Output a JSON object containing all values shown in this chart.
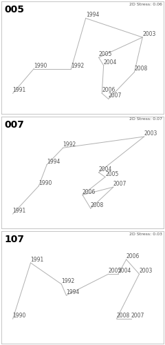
{
  "panels": [
    {
      "label": "005",
      "stress": "2D Stress: 0.06",
      "points": {
        "1991": [
          0.07,
          0.18
        ],
        "1990": [
          0.2,
          0.4
        ],
        "1992": [
          0.43,
          0.4
        ],
        "1994": [
          0.52,
          0.85
        ],
        "2003": [
          0.87,
          0.68
        ],
        "2005": [
          0.6,
          0.5
        ],
        "2004": [
          0.63,
          0.43
        ],
        "2008": [
          0.82,
          0.37
        ],
        "2006": [
          0.62,
          0.18
        ],
        "2007": [
          0.66,
          0.13
        ]
      },
      "connections": [
        [
          "1991",
          "1990"
        ],
        [
          "1990",
          "1992"
        ],
        [
          "1992",
          "1994"
        ],
        [
          "1994",
          "2003"
        ],
        [
          "2003",
          "2005"
        ],
        [
          "2005",
          "2004"
        ],
        [
          "2004",
          "2006"
        ],
        [
          "2006",
          "2007"
        ],
        [
          "2007",
          "2008"
        ],
        [
          "2008",
          "2003"
        ]
      ]
    },
    {
      "label": "007",
      "stress": "2D Stress: 0.07",
      "points": {
        "1991": [
          0.07,
          0.13
        ],
        "1990": [
          0.23,
          0.38
        ],
        "1992": [
          0.38,
          0.72
        ],
        "1994": [
          0.28,
          0.57
        ],
        "2003": [
          0.88,
          0.82
        ],
        "2004": [
          0.6,
          0.5
        ],
        "2005": [
          0.64,
          0.46
        ],
        "2006": [
          0.5,
          0.3
        ],
        "2007": [
          0.69,
          0.37
        ],
        "2008": [
          0.55,
          0.18
        ]
      },
      "connections": [
        [
          "1991",
          "1990"
        ],
        [
          "1990",
          "1994"
        ],
        [
          "1994",
          "1992"
        ],
        [
          "1992",
          "2003"
        ],
        [
          "2003",
          "2004"
        ],
        [
          "2004",
          "2005"
        ],
        [
          "2005",
          "2006"
        ],
        [
          "2006",
          "2008"
        ],
        [
          "2008",
          "2007"
        ],
        [
          "2007",
          "2006"
        ]
      ]
    },
    {
      "label": "107",
      "stress": "2D Stress: 0.03",
      "points": {
        "1990": [
          0.07,
          0.22
        ],
        "1991": [
          0.18,
          0.72
        ],
        "1992": [
          0.37,
          0.53
        ],
        "1994": [
          0.4,
          0.43
        ],
        "2005": [
          0.66,
          0.62
        ],
        "2004": [
          0.72,
          0.62
        ],
        "2006": [
          0.77,
          0.75
        ],
        "2003": [
          0.85,
          0.62
        ],
        "2008": [
          0.71,
          0.22
        ],
        "2007": [
          0.8,
          0.22
        ]
      },
      "connections": [
        [
          "1990",
          "1991"
        ],
        [
          "1991",
          "1992"
        ],
        [
          "1992",
          "1994"
        ],
        [
          "1994",
          "2005"
        ],
        [
          "2005",
          "2004"
        ],
        [
          "2004",
          "2006"
        ],
        [
          "2006",
          "2003"
        ],
        [
          "2003",
          "2008"
        ],
        [
          "2008",
          "2007"
        ]
      ]
    }
  ],
  "line_color": "#b0b0b0",
  "text_color": "#555555",
  "label_fontsize": 5.5,
  "stress_fontsize": 4.5,
  "panel_label_fontsize": 10,
  "bg_color": "#ffffff",
  "border_color": "#bbbbbb"
}
